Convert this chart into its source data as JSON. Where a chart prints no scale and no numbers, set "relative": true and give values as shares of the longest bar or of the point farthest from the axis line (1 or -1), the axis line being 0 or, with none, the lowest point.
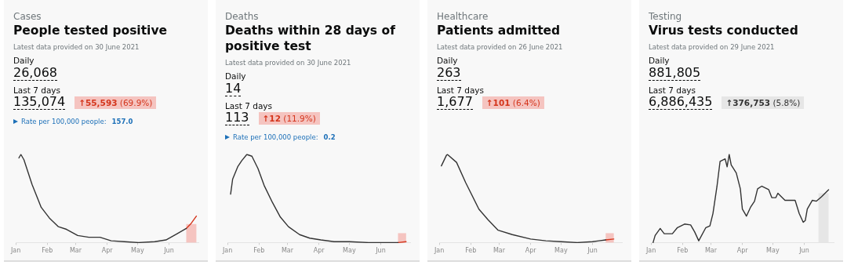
{
  "chart_data": [
    {
      "type": "line",
      "subtitle": "Cases",
      "title": "People tested positive",
      "relative": true,
      "annotations": [
        "Latest data provided on 30 June 2021",
        "Daily",
        "26,068",
        "Last 7 days",
        "135,074",
        "↑55,593",
        "(69.9%)",
        "Rate per 100,000 people:",
        "157.0"
      ],
      "xlim": [
        "--01-01",
        "--06-30"
      ],
      "xticks": [
        {
          "value": "--01-01",
          "label": "Jan"
        },
        {
          "value": "--02-01",
          "label": "Feb"
        },
        {
          "value": "--03-01",
          "label": "Mar"
        },
        {
          "value": "--04-01",
          "label": "Apr"
        },
        {
          "value": "--05-01",
          "label": "May"
        },
        {
          "value": "--06-01",
          "label": "Jun"
        }
      ],
      "bands": [
        {
          "axis": "x",
          "from": "--06-18",
          "to": "--06-28",
          "color": "#f5c4c0"
        }
      ],
      "series": [
        {
          "color": "#333333",
          "x": [
            "--01-04",
            "--01-06",
            "--01-09",
            "--01-17",
            "--01-26",
            "--02-03",
            "--02-12",
            "--02-20",
            "--03-03",
            "--03-14",
            "--03-25",
            "--04-05",
            "--04-18",
            "--05-02",
            "--05-18",
            "--05-29",
            "--06-09",
            "--06-18"
          ],
          "values": [
            0.96,
            1,
            0.94,
            0.66,
            0.4,
            0.28,
            0.18,
            0.15,
            0.08,
            0.06,
            0.06,
            0.02,
            0.01,
            0,
            0.01,
            0.03,
            0.1,
            0.16
          ]
        },
        {
          "color": "#d4351c",
          "x": [
            "--06-18",
            "--06-23",
            "--06-28"
          ],
          "values": [
            0.16,
            0.22,
            0.3
          ]
        }
      ]
    },
    {
      "type": "line",
      "subtitle": "Deaths",
      "title": "Deaths within 28 days of positive test",
      "relative": true,
      "annotations": [
        "Latest data provided on 30 June 2021",
        "Daily",
        "14",
        "Last 7 days",
        "113",
        "↑12",
        "(11.9%)",
        "Rate per 100,000 people:",
        "0.2"
      ],
      "xlim": [
        "--01-01",
        "--06-30"
      ],
      "xticks": [
        {
          "value": "--01-01",
          "label": "Jan"
        },
        {
          "value": "--02-01",
          "label": "Feb"
        },
        {
          "value": "--03-01",
          "label": "Mar"
        },
        {
          "value": "--04-01",
          "label": "Apr"
        },
        {
          "value": "--05-01",
          "label": "May"
        },
        {
          "value": "--06-01",
          "label": "Jun"
        }
      ],
      "bands": [
        {
          "axis": "x",
          "from": "--06-18",
          "to": "--06-26",
          "color": "#f5c4c0"
        }
      ],
      "series": [
        {
          "color": "#333333",
          "x": [
            "--01-04",
            "--01-06",
            "--01-11",
            "--01-15",
            "--01-20",
            "--01-25",
            "--01-31",
            "--02-06",
            "--02-14",
            "--02-22",
            "--03-02",
            "--03-13",
            "--03-23",
            "--04-03",
            "--04-16",
            "--05-01",
            "--05-20",
            "--06-10",
            "--06-18"
          ],
          "values": [
            0.55,
            0.72,
            0.86,
            0.93,
            1,
            0.98,
            0.84,
            0.65,
            0.46,
            0.29,
            0.18,
            0.09,
            0.05,
            0.03,
            0.01,
            0.01,
            0,
            0,
            0
          ]
        },
        {
          "color": "#d4351c",
          "x": [
            "--06-18",
            "--06-26"
          ],
          "values": [
            0,
            0.01
          ]
        }
      ]
    },
    {
      "type": "line",
      "subtitle": "Healthcare",
      "title": "Patients admitted",
      "relative": true,
      "annotations": [
        "Latest data provided on 26 June 2021",
        "Daily",
        "263",
        "Last 7 days",
        "1,677",
        "↑101",
        "(6.4%)"
      ],
      "xlim": [
        "--01-01",
        "--06-30"
      ],
      "xticks": [
        {
          "value": "--01-01",
          "label": "Jan"
        },
        {
          "value": "--02-01",
          "label": "Feb"
        },
        {
          "value": "--03-01",
          "label": "Mar"
        },
        {
          "value": "--04-01",
          "label": "Apr"
        },
        {
          "value": "--05-01",
          "label": "May"
        },
        {
          "value": "--06-01",
          "label": "Jun"
        }
      ],
      "bands": [
        {
          "axis": "x",
          "from": "--06-14",
          "to": "--06-22",
          "color": "#f5c4c0"
        }
      ],
      "series": [
        {
          "color": "#333333",
          "x": [
            "--01-03",
            "--01-08",
            "--01-09",
            "--01-18",
            "--01-27",
            "--02-09",
            "--02-18",
            "--02-28",
            "--03-14",
            "--04-01",
            "--04-16",
            "--05-01",
            "--05-17",
            "--06-01",
            "--06-14"
          ],
          "values": [
            0.87,
            0.99,
            1,
            0.91,
            0.68,
            0.38,
            0.26,
            0.14,
            0.09,
            0.04,
            0.02,
            0.01,
            0,
            0.01,
            0.03
          ]
        },
        {
          "color": "#d4351c",
          "x": [
            "--06-14",
            "--06-22"
          ],
          "values": [
            0.03,
            0.04
          ]
        }
      ]
    },
    {
      "type": "line",
      "subtitle": "Testing",
      "title": "Virus tests conducted",
      "relative": true,
      "annotations": [
        "Latest data provided on 29 June 2021",
        "Daily",
        "881,805",
        "Last 7 days",
        "6,886,435",
        "↑376,753",
        "(5.8%)"
      ],
      "xlim": [
        "--01-01",
        "--06-30"
      ],
      "xticks": [
        {
          "value": "--01-01",
          "label": "Jan"
        },
        {
          "value": "--02-01",
          "label": "Feb"
        },
        {
          "value": "--03-01",
          "label": "Mar"
        },
        {
          "value": "--04-01",
          "label": "Apr"
        },
        {
          "value": "--05-01",
          "label": "May"
        },
        {
          "value": "--06-01",
          "label": "Jun"
        }
      ],
      "bands": [
        {
          "axis": "x",
          "from": "--06-15",
          "to": "--06-25",
          "color": "#e6e6e6"
        }
      ],
      "series": [
        {
          "color": "#333333",
          "x": [
            "--01-03",
            "--01-05",
            "--01-10",
            "--01-14",
            "--01-22",
            "--01-27",
            "--02-03",
            "--02-09",
            "--02-13",
            "--02-17",
            "--02-24",
            "--02-28",
            "--03-03",
            "--03-07",
            "--03-10",
            "--03-15",
            "--03-17",
            "--03-19",
            "--03-21",
            "--03-26",
            "--03-30",
            "--04-01",
            "--04-05",
            "--04-09",
            "--04-13",
            "--04-16",
            "--04-20",
            "--04-27",
            "--04-30",
            "--05-04",
            "--05-06",
            "--05-13",
            "--05-23",
            "--05-27",
            "--05-31",
            "--06-02",
            "--06-04",
            "--06-09",
            "--06-13",
            "--06-18",
            "--06-25"
          ],
          "values": [
            0,
            0.08,
            0.16,
            0.1,
            0.1,
            0.17,
            0.21,
            0.2,
            0.12,
            0.02,
            0.17,
            0.19,
            0.33,
            0.64,
            0.92,
            0.95,
            0.86,
            1,
            0.88,
            0.79,
            0.61,
            0.38,
            0.3,
            0.4,
            0.47,
            0.61,
            0.64,
            0.6,
            0.51,
            0.51,
            0.56,
            0.48,
            0.48,
            0.33,
            0.23,
            0.25,
            0.38,
            0.48,
            0.47,
            0.52,
            0.6
          ]
        }
      ]
    }
  ]
}
